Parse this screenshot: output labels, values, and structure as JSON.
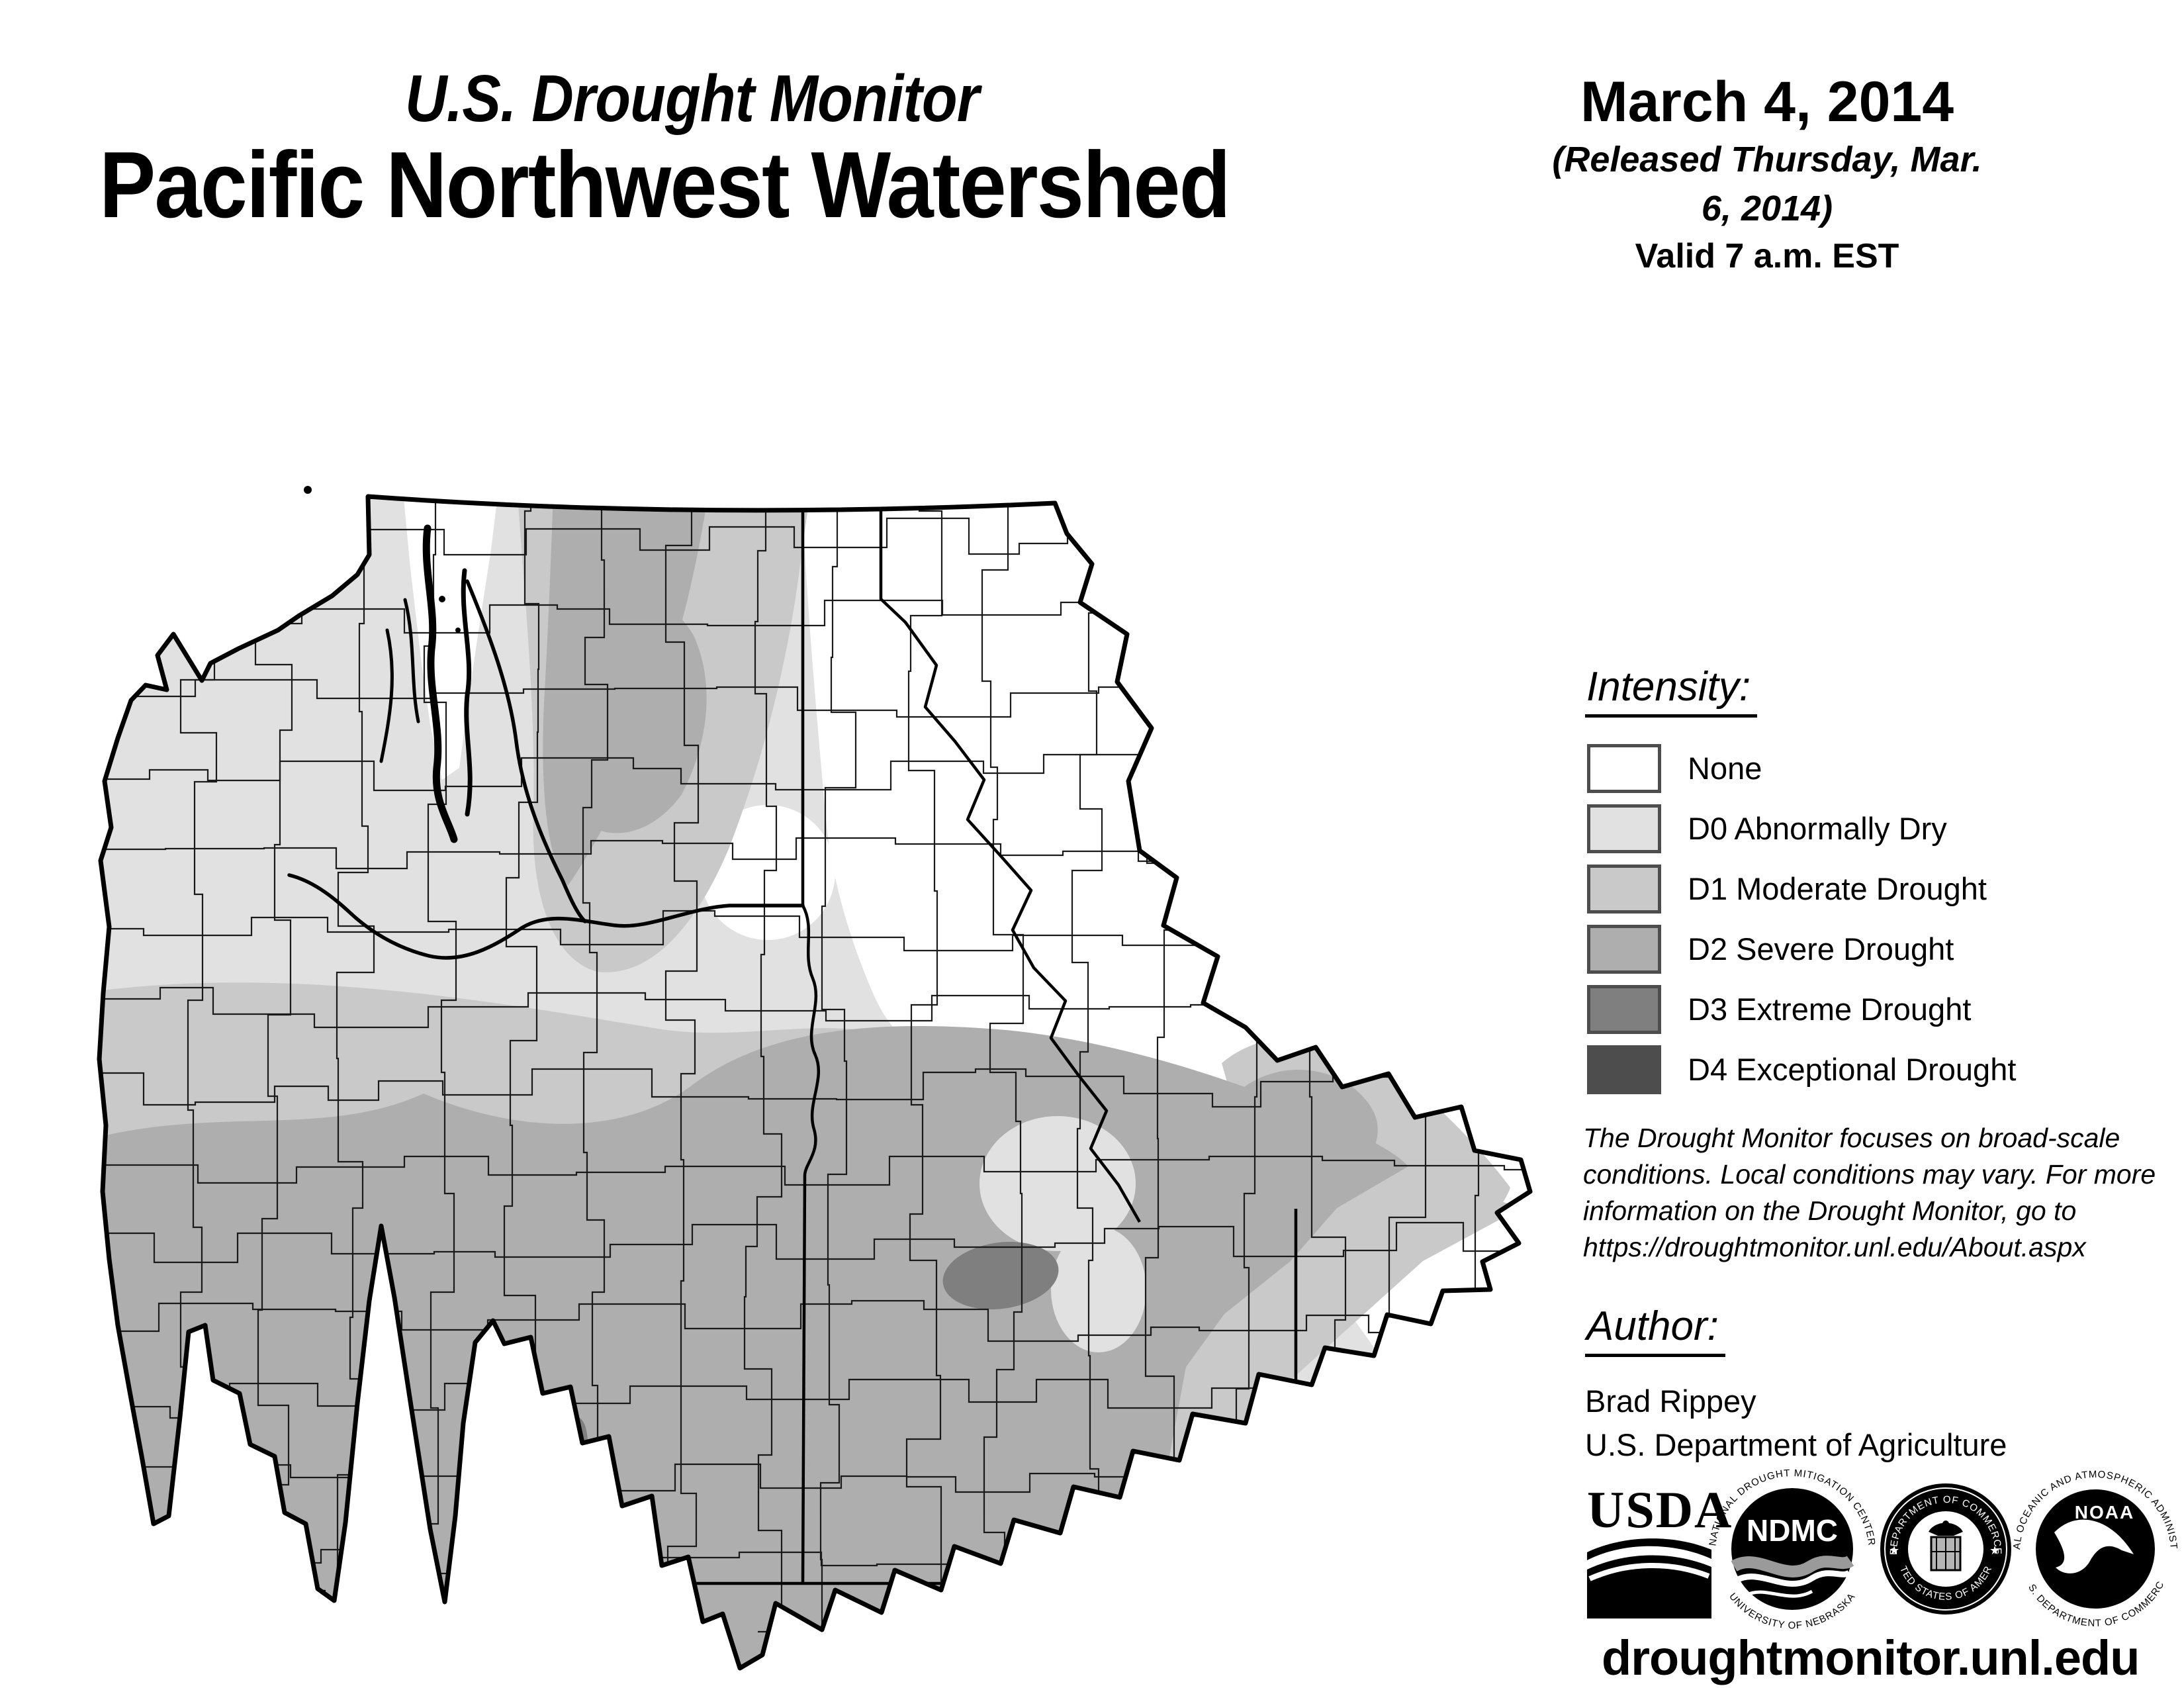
{
  "header": {
    "supertitle": "U.S. Drought Monitor",
    "title": "Pacific Northwest Watershed"
  },
  "date_block": {
    "date": "March 4, 2014",
    "released": "(Released Thursday, Mar. 6, 2014)",
    "valid": "Valid 7 a.m. EST"
  },
  "legend": {
    "heading": "Intensity:",
    "items": [
      {
        "code": "none",
        "label": "None",
        "color": "#ffffff"
      },
      {
        "code": "D0",
        "label": "D0 Abnormally Dry",
        "color": "#e1e1e1"
      },
      {
        "code": "D1",
        "label": "D1 Moderate Drought",
        "color": "#c9c9c9"
      },
      {
        "code": "D2",
        "label": "D2 Severe Drought",
        "color": "#aeaeae"
      },
      {
        "code": "D3",
        "label": "D3 Extreme Drought",
        "color": "#7f7f7f"
      },
      {
        "code": "D4",
        "label": "D4 Exceptional Drought",
        "color": "#4d4d4d"
      }
    ]
  },
  "disclaimer": {
    "lines": [
      "The Drought Monitor focuses on broad-scale",
      "conditions. Local conditions may vary. For more",
      "information on the Drought Monitor, go to",
      "https://droughtmonitor.unl.edu/About.aspx"
    ]
  },
  "author": {
    "heading": "Author:",
    "name": "Brad Rippey",
    "org": "U.S. Department of Agriculture"
  },
  "logos": {
    "usda": {
      "text": "USDA"
    },
    "ndmc": {
      "text": "NDMC",
      "ring_top": "NATIONAL DROUGHT MITIGATION CENTER",
      "ring_bottom": "UNIVERSITY OF NEBRASKA"
    },
    "commerce": {
      "ring_top": "DEPARTMENT OF COMMERCE",
      "ring_bottom": "UNITED STATES OF AMERICA"
    },
    "noaa": {
      "text": "NOAA",
      "ring_top": "NATIONAL OCEANIC AND ATMOSPHERIC ADMINISTRATION",
      "ring_bottom": "U.S. DEPARTMENT OF COMMERCE"
    }
  },
  "footer": {
    "url": "droughtmonitor.unl.edu"
  },
  "map": {
    "region": "Pacific Northwest Watershed",
    "palette": {
      "none": "#ffffff",
      "d0": "#e1e1e1",
      "d1": "#c9c9c9",
      "d2": "#aeaeae",
      "d3": "#7f7f7f",
      "d4": "#4d4d4d",
      "county_line": "#1a1a1a",
      "state_line": "#000000",
      "boundary": "#000000"
    }
  }
}
